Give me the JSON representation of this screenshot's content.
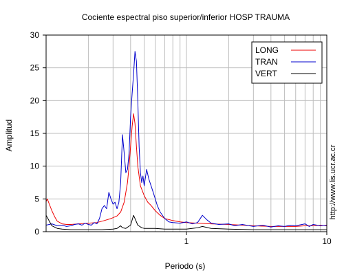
{
  "chart_data": {
    "type": "line",
    "title": "Cociente espectral piso superior/inferior  HOSP TRAUMA",
    "xlabel": "Periodo (s)",
    "ylabel": "Amplitud",
    "x_scale": "log",
    "xlim": [
      0.1,
      10
    ],
    "ylim": [
      0,
      30
    ],
    "y_ticks": [
      0,
      5,
      10,
      15,
      20,
      25,
      30
    ],
    "x_tick_labels": [
      {
        "value": 1,
        "label": "1"
      },
      {
        "value": 10,
        "label": "10"
      }
    ],
    "grid": true,
    "legend_position": "top-right",
    "side_text": "http://www.lis.ucr.ac.cr",
    "series": [
      {
        "name": "LONG",
        "color": "#ee0000",
        "points": [
          [
            0.1,
            4.6
          ],
          [
            0.102,
            5.0
          ],
          [
            0.105,
            4.3
          ],
          [
            0.11,
            3.2
          ],
          [
            0.115,
            2.3
          ],
          [
            0.12,
            1.6
          ],
          [
            0.13,
            1.2
          ],
          [
            0.14,
            1.1
          ],
          [
            0.15,
            1.1
          ],
          [
            0.17,
            1.2
          ],
          [
            0.2,
            1.3
          ],
          [
            0.23,
            1.4
          ],
          [
            0.26,
            1.7
          ],
          [
            0.29,
            2.0
          ],
          [
            0.32,
            2.4
          ],
          [
            0.34,
            3.0
          ],
          [
            0.36,
            4.5
          ],
          [
            0.38,
            7.5
          ],
          [
            0.39,
            10.0
          ],
          [
            0.4,
            13.0
          ],
          [
            0.41,
            16.0
          ],
          [
            0.42,
            18.0
          ],
          [
            0.43,
            16.5
          ],
          [
            0.44,
            13.0
          ],
          [
            0.45,
            10.0
          ],
          [
            0.47,
            7.0
          ],
          [
            0.5,
            5.5
          ],
          [
            0.53,
            4.5
          ],
          [
            0.56,
            4.0
          ],
          [
            0.6,
            3.2
          ],
          [
            0.65,
            2.5
          ],
          [
            0.7,
            2.0
          ],
          [
            0.8,
            1.7
          ],
          [
            0.9,
            1.5
          ],
          [
            1.0,
            1.4
          ],
          [
            1.2,
            1.3
          ],
          [
            1.5,
            1.2
          ],
          [
            2.0,
            1.1
          ],
          [
            2.5,
            1.0
          ],
          [
            3.0,
            0.9
          ],
          [
            4.0,
            0.8
          ],
          [
            5.0,
            0.8
          ],
          [
            6.0,
            0.8
          ],
          [
            7.0,
            0.9
          ],
          [
            8.0,
            0.9
          ],
          [
            9.0,
            1.0
          ],
          [
            10.0,
            0.9
          ]
        ]
      },
      {
        "name": "TRAN",
        "color": "#0000cc",
        "points": [
          [
            0.1,
            1.0
          ],
          [
            0.11,
            1.2
          ],
          [
            0.12,
            0.9
          ],
          [
            0.13,
            1.0
          ],
          [
            0.14,
            0.8
          ],
          [
            0.15,
            0.9
          ],
          [
            0.16,
            1.1
          ],
          [
            0.17,
            1.2
          ],
          [
            0.18,
            1.0
          ],
          [
            0.19,
            1.3
          ],
          [
            0.2,
            1.1
          ],
          [
            0.21,
            1.0
          ],
          [
            0.22,
            1.4
          ],
          [
            0.23,
            1.2
          ],
          [
            0.24,
            2.0
          ],
          [
            0.25,
            3.5
          ],
          [
            0.26,
            4.0
          ],
          [
            0.27,
            3.5
          ],
          [
            0.28,
            6.0
          ],
          [
            0.29,
            5.0
          ],
          [
            0.3,
            4.2
          ],
          [
            0.31,
            4.5
          ],
          [
            0.32,
            3.5
          ],
          [
            0.33,
            4.5
          ],
          [
            0.34,
            7.5
          ],
          [
            0.35,
            14.8
          ],
          [
            0.36,
            12.0
          ],
          [
            0.37,
            9.0
          ],
          [
            0.38,
            9.5
          ],
          [
            0.39,
            12.0
          ],
          [
            0.4,
            17.5
          ],
          [
            0.41,
            21.0
          ],
          [
            0.42,
            24.0
          ],
          [
            0.43,
            27.5
          ],
          [
            0.44,
            26.0
          ],
          [
            0.45,
            20.0
          ],
          [
            0.46,
            13.0
          ],
          [
            0.47,
            9.0
          ],
          [
            0.48,
            7.5
          ],
          [
            0.49,
            8.5
          ],
          [
            0.5,
            7.0
          ],
          [
            0.52,
            9.5
          ],
          [
            0.54,
            8.0
          ],
          [
            0.56,
            7.0
          ],
          [
            0.58,
            6.0
          ],
          [
            0.6,
            5.0
          ],
          [
            0.62,
            4.0
          ],
          [
            0.65,
            3.0
          ],
          [
            0.7,
            2.0
          ],
          [
            0.75,
            1.5
          ],
          [
            0.8,
            1.4
          ],
          [
            0.9,
            1.3
          ],
          [
            1.0,
            1.5
          ],
          [
            1.1,
            1.2
          ],
          [
            1.2,
            1.4
          ],
          [
            1.3,
            2.5
          ],
          [
            1.4,
            1.8
          ],
          [
            1.5,
            1.3
          ],
          [
            1.7,
            1.1
          ],
          [
            2.0,
            1.2
          ],
          [
            2.2,
            0.9
          ],
          [
            2.5,
            1.1
          ],
          [
            3.0,
            0.8
          ],
          [
            3.5,
            1.0
          ],
          [
            4.0,
            0.7
          ],
          [
            4.5,
            0.9
          ],
          [
            5.0,
            0.8
          ],
          [
            5.5,
            1.0
          ],
          [
            6.0,
            0.9
          ],
          [
            7.0,
            1.2
          ],
          [
            7.5,
            0.8
          ],
          [
            8.0,
            1.1
          ],
          [
            9.0,
            0.9
          ],
          [
            10.0,
            1.0
          ]
        ]
      },
      {
        "name": "VERT",
        "color": "#000000",
        "points": [
          [
            0.1,
            2.5
          ],
          [
            0.103,
            2.0
          ],
          [
            0.106,
            1.5
          ],
          [
            0.11,
            0.9
          ],
          [
            0.12,
            0.5
          ],
          [
            0.13,
            0.4
          ],
          [
            0.15,
            0.3
          ],
          [
            0.17,
            0.3
          ],
          [
            0.2,
            0.3
          ],
          [
            0.25,
            0.3
          ],
          [
            0.3,
            0.4
          ],
          [
            0.32,
            0.5
          ],
          [
            0.34,
            0.9
          ],
          [
            0.35,
            0.6
          ],
          [
            0.37,
            0.5
          ],
          [
            0.4,
            1.0
          ],
          [
            0.42,
            2.5
          ],
          [
            0.43,
            2.0
          ],
          [
            0.45,
            1.0
          ],
          [
            0.48,
            0.6
          ],
          [
            0.5,
            0.5
          ],
          [
            0.6,
            0.5
          ],
          [
            0.7,
            0.4
          ],
          [
            0.8,
            0.4
          ],
          [
            1.0,
            0.4
          ],
          [
            1.2,
            0.6
          ],
          [
            1.3,
            0.8
          ],
          [
            1.5,
            0.5
          ],
          [
            2.0,
            0.4
          ],
          [
            3.0,
            0.3
          ],
          [
            4.0,
            0.3
          ],
          [
            5.0,
            0.3
          ],
          [
            7.0,
            0.3
          ],
          [
            10.0,
            0.3
          ]
        ]
      }
    ]
  }
}
